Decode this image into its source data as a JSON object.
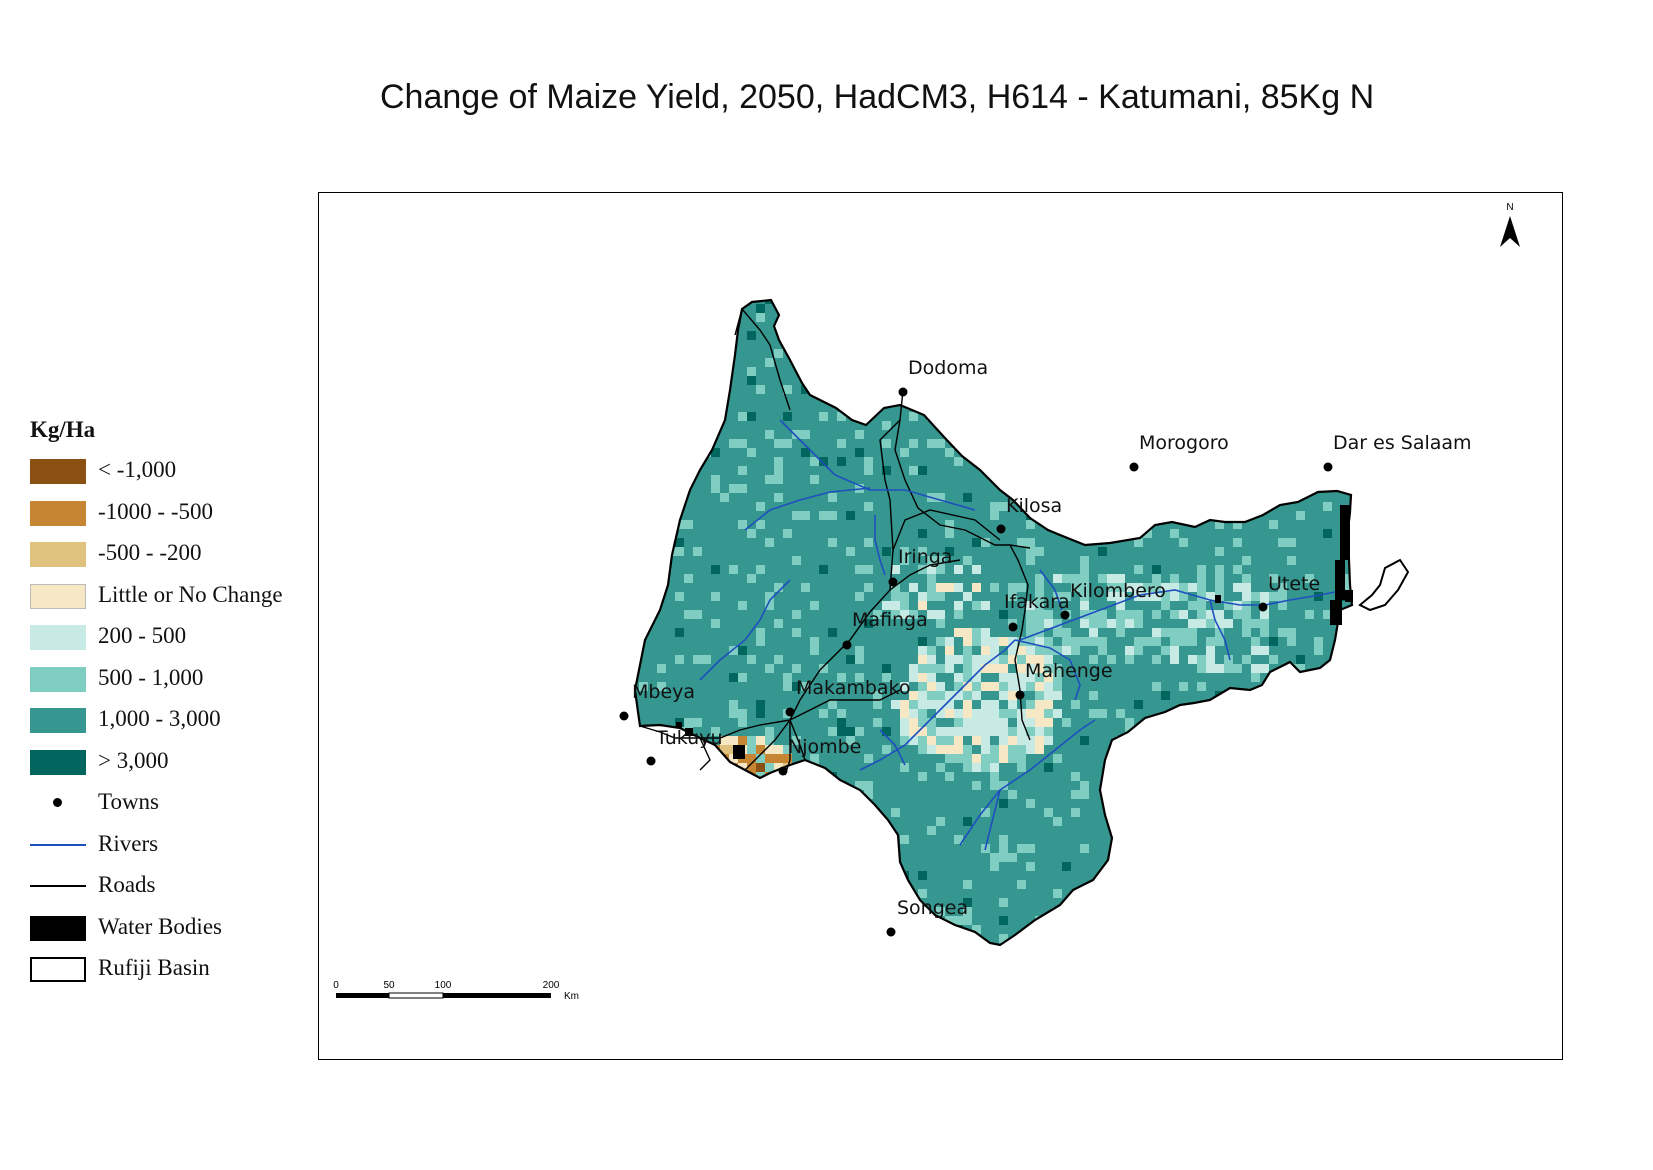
{
  "title": "Change of Maize Yield, 2050, HadCM3, H614 - Katumani, 85Kg N",
  "legend": {
    "title": "Kg/Ha",
    "classes": [
      {
        "label": "< -1,000",
        "color": "#8b5113"
      },
      {
        "label": "-1000 - -500",
        "color": "#c58532"
      },
      {
        "label": "-500 - -200",
        "color": "#dfc27e"
      },
      {
        "label": "Little or No Change",
        "color": "#f6e8c4"
      },
      {
        "label": "200 - 500",
        "color": "#c7eae4"
      },
      {
        "label": "500 - 1,000",
        "color": "#80cdc1"
      },
      {
        "label": "1,000 - 3,000",
        "color": "#35978f"
      },
      {
        "label": "> 3,000",
        "color": "#01665e"
      }
    ],
    "towns": "Towns",
    "rivers": "Rivers",
    "roads": "Roads",
    "water_bodies": "Water Bodies",
    "basin": "Rufiji Basin"
  },
  "colors": {
    "river": "#1f4fbf",
    "road": "#000000",
    "water": "#000000"
  },
  "north_arrow": "N",
  "scale_bar": {
    "ticks": [
      "0",
      "50",
      "100",
      "200"
    ],
    "unit": "Km"
  },
  "towns": [
    "Dodoma",
    "Morogoro",
    "Dar es Salaam",
    "Kilosa",
    "Iringa",
    "Kilombero",
    "Ifakara",
    "Utete",
    "Mafinga",
    "Mahenge",
    "Mbeya",
    "Makambako",
    "Tukuyu",
    "Njombe",
    "Songea"
  ]
}
